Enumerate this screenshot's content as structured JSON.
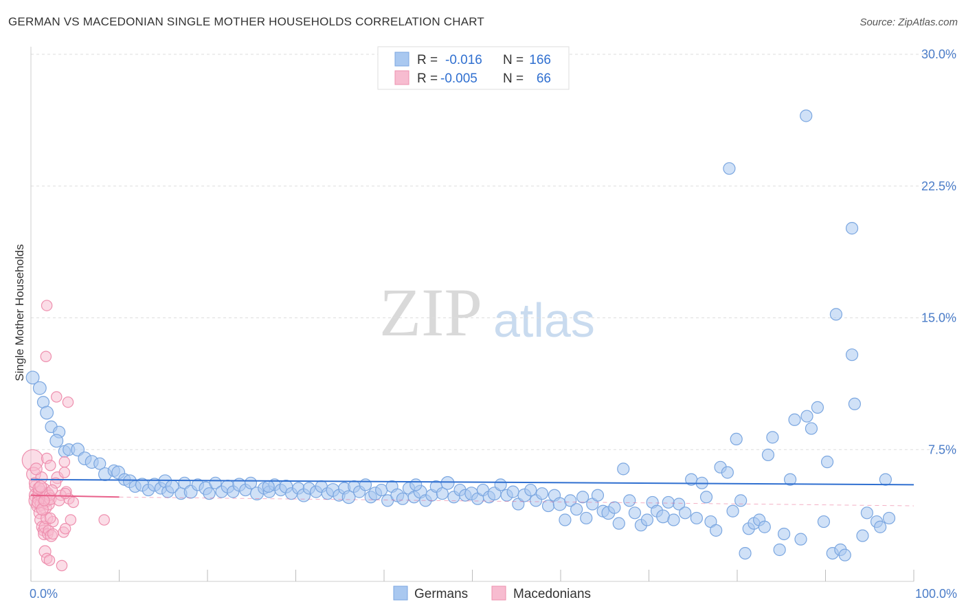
{
  "title": "GERMAN VS MACEDONIAN SINGLE MOTHER HOUSEHOLDS CORRELATION CHART",
  "source": "Source: ZipAtlas.com",
  "watermark": {
    "zip": "ZIP",
    "atlas": "atlas"
  },
  "colors": {
    "blue_fill": "#a9c8f0",
    "blue_stroke": "#7aa6e0",
    "blue_line": "#2f6fd0",
    "pink_fill": "#f7bcd0",
    "pink_stroke": "#ee8fae",
    "pink_line": "#e8608a",
    "grid": "#dddddd",
    "tick_text": "#4a7cc8"
  },
  "chart_data": {
    "type": "scatter",
    "title": "GERMAN VS MACEDONIAN SINGLE MOTHER HOUSEHOLDS CORRELATION CHART",
    "xlabel": "",
    "ylabel": "Single Mother Households",
    "xlim": [
      0,
      100
    ],
    "ylim": [
      0,
      30
    ],
    "x_tick_labels": [
      "0.0%",
      "100.0%"
    ],
    "y_ticks": [
      7.5,
      15.0,
      22.5,
      30.0
    ],
    "y_tick_labels": [
      "7.5%",
      "15.0%",
      "22.5%",
      "30.0%"
    ],
    "grid": true,
    "legend_position": "top-center",
    "legend": [
      {
        "r_label": "R =",
        "r_value": "-0.016",
        "n_label": "N =",
        "n_value": "166"
      },
      {
        "r_label": "R =",
        "r_value": "-0.005",
        "n_label": "N =",
        "n_value": "66"
      }
    ],
    "bottom_legend": [
      "Germans",
      "Macedonians"
    ],
    "series": [
      {
        "name": "Germans",
        "color": "#a9c8f0",
        "trend": {
          "x0": 0,
          "y0": 5.8,
          "x1": 100,
          "y1": 5.5
        },
        "points": [
          [
            0.2,
            11.6,
            11
          ],
          [
            1.0,
            11.0,
            11
          ],
          [
            1.4,
            10.2,
            10
          ],
          [
            1.8,
            9.6,
            11
          ],
          [
            2.3,
            8.8,
            10
          ],
          [
            3.2,
            8.5,
            10
          ],
          [
            2.9,
            8.0,
            11
          ],
          [
            3.8,
            7.4,
            10
          ],
          [
            4.3,
            7.5,
            10
          ],
          [
            5.3,
            7.5,
            11
          ],
          [
            6.1,
            7.0,
            11
          ],
          [
            6.9,
            6.8,
            11
          ],
          [
            7.8,
            6.7,
            10
          ],
          [
            8.4,
            6.1,
            11
          ],
          [
            9.4,
            6.3,
            10
          ],
          [
            9.9,
            6.2,
            11
          ],
          [
            10.6,
            5.8,
            10
          ],
          [
            11.2,
            5.7,
            11
          ],
          [
            11.8,
            5.4,
            10
          ],
          [
            12.6,
            5.5,
            11
          ],
          [
            13.3,
            5.2,
            10
          ],
          [
            14.0,
            5.5,
            11
          ],
          [
            14.7,
            5.3,
            10
          ],
          [
            15.2,
            5.7,
            11
          ],
          [
            15.5,
            5.1,
            10
          ],
          [
            16.0,
            5.4,
            11
          ],
          [
            17.0,
            5.0,
            10
          ],
          [
            17.4,
            5.6,
            10
          ],
          [
            18.1,
            5.1,
            11
          ],
          [
            18.9,
            5.5,
            10
          ],
          [
            19.8,
            5.3,
            11
          ],
          [
            20.2,
            5.0,
            10
          ],
          [
            20.9,
            5.6,
            10
          ],
          [
            21.6,
            5.1,
            10
          ],
          [
            22.3,
            5.4,
            11
          ],
          [
            22.9,
            5.1,
            10
          ],
          [
            23.6,
            5.5,
            11
          ],
          [
            24.3,
            5.2,
            10
          ],
          [
            24.9,
            5.6,
            10
          ],
          [
            25.6,
            5.0,
            11
          ],
          [
            26.4,
            5.3,
            10
          ],
          [
            27.0,
            5.1,
            10
          ],
          [
            27.6,
            5.5,
            10
          ],
          [
            28.3,
            5.2,
            10
          ],
          [
            28.9,
            5.4,
            11
          ],
          [
            29.5,
            5.0,
            10
          ],
          [
            30.3,
            5.3,
            10
          ],
          [
            30.9,
            4.9,
            11
          ],
          [
            31.5,
            5.3,
            10
          ],
          [
            32.3,
            5.1,
            10
          ],
          [
            32.9,
            5.4,
            10
          ],
          [
            33.6,
            5.0,
            10
          ],
          [
            34.2,
            5.2,
            11
          ],
          [
            34.9,
            4.9,
            10
          ],
          [
            35.5,
            5.3,
            10
          ],
          [
            36.0,
            4.8,
            11
          ],
          [
            36.6,
            5.4,
            10
          ],
          [
            37.2,
            5.1,
            10
          ],
          [
            37.9,
            5.5,
            10
          ],
          [
            38.5,
            4.8,
            10
          ],
          [
            39.0,
            5.0,
            11
          ],
          [
            39.7,
            5.2,
            10
          ],
          [
            40.4,
            4.6,
            10
          ],
          [
            40.9,
            5.4,
            10
          ],
          [
            41.5,
            4.9,
            11
          ],
          [
            42.1,
            4.7,
            10
          ],
          [
            42.8,
            5.3,
            10
          ],
          [
            43.4,
            4.8,
            10
          ],
          [
            44.1,
            5.1,
            11
          ],
          [
            44.7,
            4.6,
            10
          ],
          [
            45.4,
            4.9,
            10
          ],
          [
            45.9,
            5.4,
            10
          ],
          [
            46.6,
            5.0,
            10
          ],
          [
            47.2,
            5.6,
            11
          ],
          [
            47.9,
            4.8,
            10
          ],
          [
            48.6,
            5.2,
            10
          ],
          [
            49.2,
            4.9,
            10
          ],
          [
            49.9,
            5.0,
            11
          ],
          [
            50.6,
            4.7,
            10
          ],
          [
            51.2,
            5.2,
            10
          ],
          [
            51.9,
            4.8,
            10
          ],
          [
            52.5,
            5.0,
            11
          ],
          [
            53.2,
            5.5,
            10
          ],
          [
            53.9,
            4.9,
            10
          ],
          [
            54.6,
            5.1,
            10
          ],
          [
            55.2,
            4.4,
            10
          ],
          [
            55.9,
            4.9,
            11
          ],
          [
            56.6,
            5.2,
            10
          ],
          [
            57.2,
            4.6,
            10
          ],
          [
            57.9,
            5.0,
            10
          ],
          [
            58.6,
            4.3,
            10
          ],
          [
            59.3,
            4.9,
            10
          ],
          [
            59.9,
            4.4,
            11
          ],
          [
            60.5,
            3.5,
            10
          ],
          [
            61.1,
            4.6,
            10
          ],
          [
            61.8,
            4.1,
            10
          ],
          [
            62.5,
            4.8,
            10
          ],
          [
            62.9,
            3.6,
            10
          ],
          [
            63.6,
            4.4,
            10
          ],
          [
            64.2,
            4.9,
            10
          ],
          [
            64.8,
            4.0,
            10
          ],
          [
            65.4,
            3.9,
            11
          ],
          [
            66.1,
            4.2,
            10
          ],
          [
            66.6,
            3.3,
            10
          ],
          [
            67.1,
            6.4,
            10
          ],
          [
            67.8,
            4.6,
            10
          ],
          [
            68.4,
            3.9,
            10
          ],
          [
            69.1,
            3.2,
            10
          ],
          [
            69.8,
            3.5,
            10
          ],
          [
            70.4,
            4.5,
            10
          ],
          [
            70.9,
            4.0,
            10
          ],
          [
            71.6,
            3.7,
            11
          ],
          [
            72.2,
            4.5,
            10
          ],
          [
            72.8,
            3.5,
            10
          ],
          [
            73.4,
            4.4,
            10
          ],
          [
            74.1,
            3.9,
            10
          ],
          [
            74.8,
            5.8,
            10
          ],
          [
            75.4,
            3.6,
            10
          ],
          [
            76.0,
            5.6,
            10
          ],
          [
            76.5,
            4.8,
            10
          ],
          [
            77.0,
            3.4,
            10
          ],
          [
            77.6,
            2.9,
            10
          ],
          [
            78.1,
            6.5,
            10
          ],
          [
            78.9,
            6.2,
            10
          ],
          [
            79.5,
            4.0,
            10
          ],
          [
            79.9,
            8.1,
            10
          ],
          [
            80.4,
            4.6,
            10
          ],
          [
            80.9,
            1.6,
            10
          ],
          [
            81.3,
            3.0,
            10
          ],
          [
            81.9,
            3.3,
            10
          ],
          [
            82.5,
            3.5,
            10
          ],
          [
            83.1,
            3.1,
            10
          ],
          [
            83.5,
            7.2,
            10
          ],
          [
            84.0,
            8.2,
            10
          ],
          [
            84.8,
            1.8,
            10
          ],
          [
            85.3,
            2.7,
            10
          ],
          [
            86.0,
            5.8,
            10
          ],
          [
            86.5,
            9.2,
            10
          ],
          [
            87.2,
            2.4,
            10
          ],
          [
            87.9,
            9.4,
            10
          ],
          [
            88.4,
            8.7,
            10
          ],
          [
            89.1,
            9.9,
            10
          ],
          [
            89.8,
            3.4,
            10
          ],
          [
            90.2,
            6.8,
            10
          ],
          [
            90.8,
            1.6,
            10
          ],
          [
            91.7,
            1.8,
            10
          ],
          [
            92.2,
            1.5,
            10
          ],
          [
            91.2,
            15.2,
            10
          ],
          [
            93.0,
            12.9,
            10
          ],
          [
            93.3,
            10.1,
            10
          ],
          [
            94.2,
            2.6,
            10
          ],
          [
            94.7,
            3.9,
            10
          ],
          [
            95.8,
            3.4,
            10
          ],
          [
            96.2,
            3.1,
            10
          ],
          [
            96.8,
            5.8,
            10
          ],
          [
            97.2,
            3.6,
            10
          ],
          [
            79.1,
            23.5,
            10
          ],
          [
            87.8,
            26.5,
            10
          ],
          [
            93.0,
            20.1,
            10
          ],
          [
            43.6,
            5.5,
            10
          ],
          [
            26.9,
            5.4,
            10
          ]
        ]
      },
      {
        "name": "Macedonians",
        "color": "#f7bcd0",
        "trend": {
          "x0": 0,
          "y0": 4.9,
          "x1": 10,
          "y1": 4.8
        },
        "points": [
          [
            0.2,
            6.9,
            18
          ],
          [
            0.3,
            6.1,
            12
          ],
          [
            0.5,
            5.4,
            10
          ],
          [
            0.6,
            4.9,
            12
          ],
          [
            0.7,
            4.6,
            14
          ],
          [
            0.8,
            4.3,
            11
          ],
          [
            0.9,
            5.1,
            10
          ],
          [
            1.0,
            4.7,
            12
          ],
          [
            1.1,
            5.0,
            13
          ],
          [
            1.2,
            4.4,
            11
          ],
          [
            1.3,
            4.8,
            10
          ],
          [
            1.4,
            5.2,
            12
          ],
          [
            1.5,
            4.5,
            10
          ],
          [
            1.6,
            4.2,
            11
          ],
          [
            1.2,
            5.9,
            10
          ],
          [
            1.7,
            4.9,
            10
          ],
          [
            1.8,
            4.6,
            10
          ],
          [
            1.9,
            5.0,
            10
          ],
          [
            2.0,
            4.4,
            10
          ],
          [
            2.1,
            4.9,
            9
          ],
          [
            2.2,
            4.7,
            10
          ],
          [
            0.4,
            5.6,
            9
          ],
          [
            0.6,
            6.4,
            10
          ],
          [
            1.0,
            3.9,
            10
          ],
          [
            1.1,
            3.5,
            10
          ],
          [
            1.3,
            3.1,
            10
          ],
          [
            1.4,
            2.9,
            9
          ],
          [
            1.5,
            2.7,
            10
          ],
          [
            1.6,
            3.1,
            10
          ],
          [
            1.8,
            3.6,
            10
          ],
          [
            1.9,
            2.7,
            9
          ],
          [
            2.0,
            2.9,
            9
          ],
          [
            2.3,
            2.6,
            10
          ],
          [
            2.5,
            2.7,
            9
          ],
          [
            1.6,
            1.7,
            10
          ],
          [
            1.8,
            1.3,
            9
          ],
          [
            2.1,
            1.2,
            9
          ],
          [
            3.5,
            0.9,
            9
          ],
          [
            1.8,
            15.7,
            9
          ],
          [
            1.7,
            12.8,
            9
          ],
          [
            2.9,
            10.5,
            9
          ],
          [
            4.2,
            10.2,
            9
          ],
          [
            1.8,
            7.0,
            9
          ],
          [
            2.2,
            6.6,
            9
          ],
          [
            3.0,
            5.9,
            10
          ],
          [
            3.8,
            6.8,
            9
          ],
          [
            3.8,
            6.2,
            9
          ],
          [
            4.0,
            5.1,
            9
          ],
          [
            4.3,
            4.7,
            9
          ],
          [
            4.8,
            4.5,
            9
          ],
          [
            3.4,
            4.9,
            9
          ],
          [
            2.8,
            5.6,
            9
          ],
          [
            3.2,
            4.6,
            9
          ],
          [
            4.5,
            3.5,
            9
          ],
          [
            3.7,
            2.8,
            9
          ],
          [
            3.9,
            3.0,
            9
          ],
          [
            2.5,
            3.4,
            9
          ],
          [
            2.2,
            3.6,
            9
          ],
          [
            8.3,
            3.5,
            9
          ],
          [
            3.9,
            5.0,
            9
          ],
          [
            0.9,
            5.3,
            10
          ],
          [
            1.1,
            5.4,
            10
          ],
          [
            0.8,
            4.5,
            10
          ],
          [
            1.3,
            4.1,
            10
          ],
          [
            1.5,
            4.6,
            9
          ],
          [
            2.4,
            5.2,
            9
          ]
        ]
      }
    ]
  }
}
